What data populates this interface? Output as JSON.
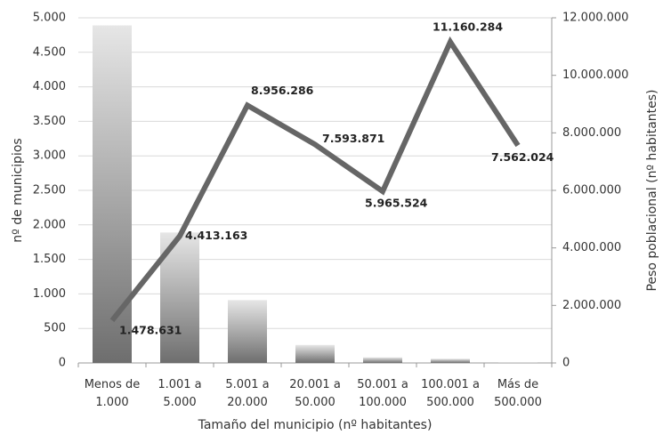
{
  "chart_data": {
    "type": "bar_line",
    "x_label": "Tamaño del municipio (nº habitantes)",
    "y_label": "nº de municipios",
    "y2_label": "Peso poblacional (nº habitantes)",
    "categories": [
      "Menos de 1.000",
      "1.001 a 5.000",
      "5.001 a 20.000",
      "20.001 a 50.000",
      "50.001 a 100.000",
      "100.001 a 500.000",
      "Más de 500.000"
    ],
    "series": [
      {
        "type": "bar",
        "color": "#8a8a8a",
        "values": [
          4890,
          1890,
          910,
          260,
          80,
          60,
          6
        ]
      },
      {
        "type": "line",
        "axis": "y2",
        "color": "#666666",
        "values": [
          1478631,
          4413163,
          8956286,
          7593871,
          5965524,
          11160284,
          7562024
        ],
        "value_labels": [
          "1.478.631",
          "4.413.163",
          "8.956.286",
          "7.593.871",
          "5.965.524",
          "11.160.284",
          "7.562.024"
        ]
      }
    ],
    "ylim": [
      0,
      5000
    ],
    "yticks": [
      0,
      500,
      {
        "value": 1000,
        "label": "1.000"
      },
      {
        "value": 1500,
        "label": "1.500"
      },
      {
        "value": 2000,
        "label": "2.000"
      },
      {
        "value": 2500,
        "label": "2.500"
      },
      {
        "value": 3000,
        "label": "3.000"
      },
      {
        "value": 3500,
        "label": "3.500"
      },
      {
        "value": 4000,
        "label": "4.000"
      },
      {
        "value": 4500,
        "label": "4.500"
      },
      {
        "value": 5000,
        "label": "5.000"
      }
    ],
    "y2lim": [
      0,
      12000000
    ],
    "y2ticks": [
      0,
      {
        "value": 2000000,
        "label": "2.000.000"
      },
      {
        "value": 4000000,
        "label": "4.000.000"
      },
      {
        "value": 6000000,
        "label": "6.000.000"
      },
      {
        "value": 8000000,
        "label": "8.000.000"
      },
      {
        "value": 10000000,
        "label": "10.000.000"
      },
      {
        "value": 12000000,
        "label": "12.000.000"
      }
    ],
    "grid": true
  }
}
